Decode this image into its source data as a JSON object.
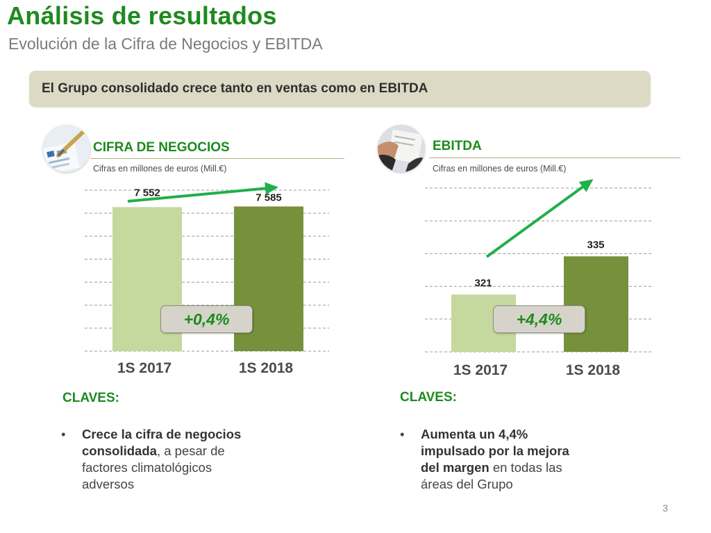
{
  "header": {
    "title": "Análisis de resultados",
    "subtitle": "Evolución de la Cifra de Negocios y EBITDA"
  },
  "banner": {
    "text": "El Grupo consolidado crece tanto en ventas como en EBITDA"
  },
  "left": {
    "heading": "CIFRA DE NEGOCIOS",
    "units": "Cifras en millones de euros (Mill.€)",
    "change": "+0,4%",
    "claves_label": "CLAVES:",
    "bullet_bold": "Crece la cifra de negocios consolidada",
    "bullet_rest": ", a pesar de factores climatológicos adversos"
  },
  "right": {
    "heading": "EBITDA",
    "units": "Cifras en millones de euros (Mill.€)",
    "change": "+4,4%",
    "claves_label": "CLAVES:",
    "bullet_bold": "Aumenta un 4,4% impulsado por la mejora del margen",
    "bullet_rest": " en todas las áreas del Grupo"
  },
  "bullet_glyph": "•",
  "page_number": "3",
  "colors": {
    "title_green": "#1e8a1e",
    "bar_2017": "#c5d89e",
    "bar_2018": "#76913b",
    "arrow_green": "#1fb04a",
    "banner_bg": "#dcdac4"
  },
  "chart_data": [
    {
      "type": "bar",
      "title": "CIFRA DE NEGOCIOS",
      "categories": [
        "1S 2017",
        "1S 2018"
      ],
      "values": [
        7552,
        7585
      ],
      "data_labels": [
        "7 552",
        "7 585"
      ],
      "ylim": [
        0,
        8440
      ],
      "grid": true,
      "gridlines": 8,
      "trend_arrow": true,
      "annotation": "+0,4%"
    },
    {
      "type": "bar",
      "title": "EBITDA",
      "categories": [
        "1S 2017",
        "1S 2018"
      ],
      "values": [
        321,
        335
      ],
      "data_labels": [
        "321",
        "335"
      ],
      "ylim": [
        300,
        360
      ],
      "grid": true,
      "gridlines": 6,
      "trend_arrow": true,
      "annotation": "+4,4%"
    }
  ]
}
